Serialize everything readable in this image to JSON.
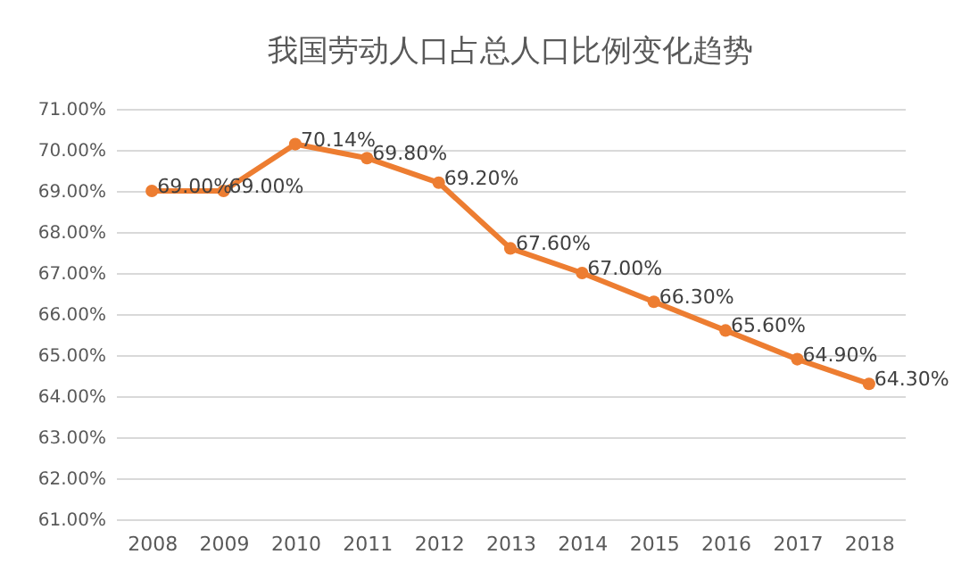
{
  "chart_data": {
    "type": "line",
    "title": "我国劳动人口占总人口比例变化趋势",
    "categories": [
      "2008",
      "2009",
      "2010",
      "2011",
      "2012",
      "2013",
      "2014",
      "2015",
      "2016",
      "2017",
      "2018"
    ],
    "series": [
      {
        "color": "#ed7d31",
        "values": [
          69.0,
          69.0,
          70.14,
          69.8,
          69.2,
          67.6,
          67.0,
          66.3,
          65.6,
          64.9,
          64.3
        ],
        "value_labels": [
          "69.00%",
          "69.00%",
          "70.14%",
          "69.80%",
          "69.20%",
          "67.60%",
          "67.00%",
          "66.30%",
          "65.60%",
          "64.90%",
          "64.30%"
        ]
      }
    ],
    "ylim": [
      61,
      71
    ],
    "yticks": [
      {
        "value": 61,
        "label": "61.00%"
      },
      {
        "value": 62,
        "label": "62.00%"
      },
      {
        "value": 63,
        "label": "63.00%"
      },
      {
        "value": 64,
        "label": "64.00%"
      },
      {
        "value": 65,
        "label": "65.00%"
      },
      {
        "value": 66,
        "label": "66.00%"
      },
      {
        "value": 67,
        "label": "67.00%"
      },
      {
        "value": 68,
        "label": "68.00%"
      },
      {
        "value": 69,
        "label": "69.00%"
      },
      {
        "value": 70,
        "label": "70.00%"
      },
      {
        "value": 71,
        "label": "71.00%"
      }
    ],
    "grid": "y",
    "marker": "circle",
    "line_style": "solid"
  }
}
